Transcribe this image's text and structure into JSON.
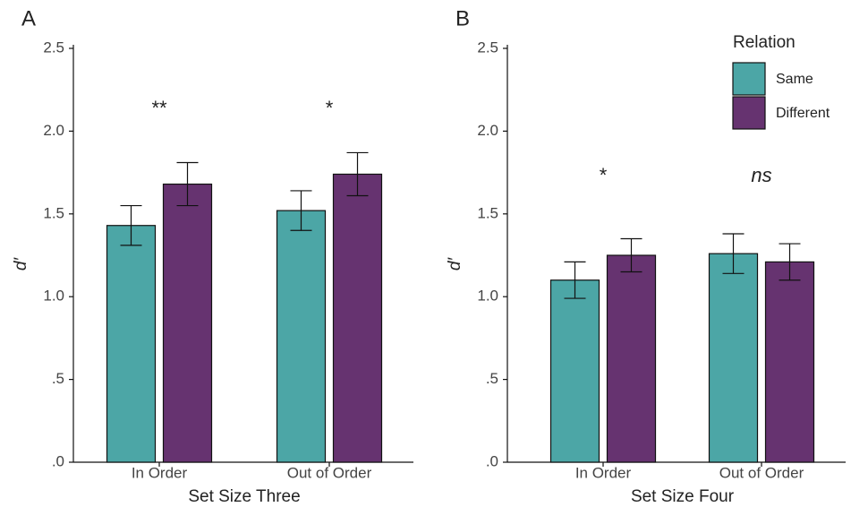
{
  "chart_data": [
    {
      "type": "bar",
      "panel_label": "A",
      "ylabel": "d′",
      "xlabel": "Set Size Three",
      "categories": [
        "In Order",
        "Out of Order"
      ],
      "series": [
        {
          "color": "#4ca6a6",
          "values": [
            1.43,
            1.52
          ],
          "errors": [
            0.12,
            0.12
          ]
        },
        {
          "color": "#663370",
          "values": [
            1.68,
            1.74
          ],
          "errors": [
            0.13,
            0.13
          ]
        }
      ],
      "annotations": [
        "**",
        "*"
      ],
      "ylim": [
        0,
        2.5
      ],
      "yticks": [
        {
          "value": 0,
          "label": ".0"
        },
        {
          "value": 0.5,
          "label": ".5"
        },
        {
          "value": 1,
          "label": "1.0"
        },
        1.5,
        {
          "value": 2,
          "label": "2.0"
        },
        2.5
      ]
    },
    {
      "type": "bar",
      "panel_label": "B",
      "ylabel": "d′",
      "xlabel": "Set Size Four",
      "categories": [
        "In Order",
        "Out of Order"
      ],
      "series": [
        {
          "name": "Same",
          "color": "#4ca6a6",
          "values": [
            1.1,
            1.26
          ],
          "errors": [
            0.11,
            0.12
          ]
        },
        {
          "name": "Different",
          "color": "#663370",
          "values": [
            1.25,
            1.21
          ],
          "errors": [
            0.1,
            0.11
          ]
        }
      ],
      "annotations": [
        "*",
        "ns"
      ],
      "ylim": [
        0,
        2.5
      ],
      "yticks": [
        {
          "value": 0,
          "label": ".0"
        },
        {
          "value": 0.5,
          "label": ".5"
        },
        {
          "value": 1,
          "label": "1.0"
        },
        1.5,
        {
          "value": 2,
          "label": "2.0"
        },
        2.5
      ],
      "legend": "top-right",
      "legend_title": "Relation"
    }
  ]
}
